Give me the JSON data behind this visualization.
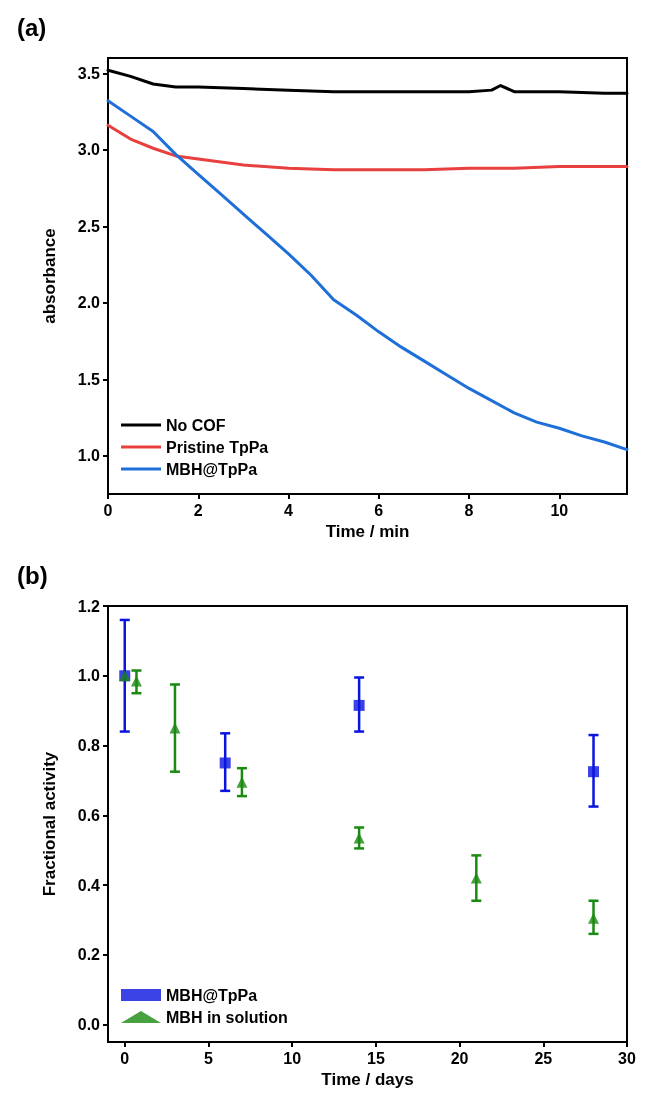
{
  "chart_data": [
    {
      "type": "line",
      "title": "(a)",
      "xlabel": "Time / min",
      "ylabel": "absorbance",
      "xlim": [
        0,
        11.5
      ],
      "xticks": [
        0,
        2,
        4,
        6,
        8,
        10
      ],
      "ylim": [
        0.75,
        3.6
      ],
      "yticks": [
        {
          "value": 1,
          "label": "1.0"
        },
        1.5,
        {
          "value": 2,
          "label": "2.0"
        },
        2.5,
        {
          "value": 3,
          "label": "3.0"
        },
        3.5
      ],
      "grid": false,
      "legend": "bottom left",
      "line_style": "solid",
      "series": [
        {
          "name": "No COF",
          "color": "#000000",
          "x": [
            0,
            0.5,
            1,
            1.5,
            2,
            3,
            4,
            5,
            6,
            7,
            8,
            8.5,
            8.7,
            9,
            10,
            11,
            11.5
          ],
          "values": [
            3.52,
            3.48,
            3.43,
            3.41,
            3.41,
            3.4,
            3.39,
            3.38,
            3.38,
            3.38,
            3.38,
            3.39,
            3.42,
            3.38,
            3.38,
            3.37,
            3.37
          ]
        },
        {
          "name": "Pristine TpPa",
          "color": "#e8403e",
          "x": [
            0,
            0.5,
            1,
            1.5,
            2,
            3,
            4,
            5,
            6,
            7,
            8,
            9,
            10,
            11,
            11.5
          ],
          "values": [
            3.16,
            3.07,
            3.01,
            2.96,
            2.94,
            2.9,
            2.88,
            2.87,
            2.87,
            2.87,
            2.88,
            2.88,
            2.89,
            2.89,
            2.89
          ]
        },
        {
          "name": "MBH@TpPa",
          "color": "#1f6fd9",
          "x": [
            0,
            0.5,
            1,
            1.5,
            2,
            2.5,
            3,
            3.5,
            4,
            4.5,
            5,
            5.5,
            6,
            6.5,
            7,
            7.5,
            8,
            8.5,
            9,
            9.5,
            10,
            10.5,
            11,
            11.5
          ],
          "values": [
            3.32,
            3.22,
            3.12,
            2.97,
            2.84,
            2.71,
            2.58,
            2.45,
            2.32,
            2.18,
            2.02,
            1.92,
            1.81,
            1.71,
            1.62,
            1.53,
            1.44,
            1.36,
            1.28,
            1.22,
            1.18,
            1.13,
            1.09,
            1.04
          ]
        }
      ]
    },
    {
      "type": "scatter",
      "title": "(b)",
      "xlabel": "Time / days",
      "ylabel": "Fractional activity",
      "xlim": [
        -1,
        30
      ],
      "xticks": [
        0,
        5,
        10,
        15,
        20,
        25,
        30
      ],
      "ylim": [
        -0.05,
        1.2
      ],
      "yticks": [
        {
          "value": 0,
          "label": "0.0"
        },
        0.2,
        0.4,
        0.6,
        0.8,
        {
          "value": 1,
          "label": "1.0"
        },
        1.2
      ],
      "grid": false,
      "legend": "bottom left",
      "series": [
        {
          "name": "MBH@TpPa",
          "color": "#0a14e0",
          "marker": "square",
          "x": [
            0,
            6,
            14,
            28
          ],
          "values": [
            1.0,
            0.75,
            0.915,
            0.725
          ],
          "errors": [
            [
              0.84,
              1.16
            ],
            [
              0.67,
              0.835
            ],
            [
              0.84,
              0.995
            ],
            [
              0.625,
              0.83
            ]
          ]
        },
        {
          "name": "MBH in solution",
          "color": "#1a8a10",
          "marker": "triangle",
          "x": [
            0,
            0.7,
            3,
            7,
            14,
            21,
            28
          ],
          "values": [
            1.0,
            0.985,
            0.85,
            0.695,
            0.535,
            0.42,
            0.305
          ],
          "errors": [
            null,
            [
              0.95,
              1.015
            ],
            [
              0.725,
              0.975
            ],
            [
              0.655,
              0.735
            ],
            [
              0.505,
              0.565
            ],
            [
              0.355,
              0.485
            ],
            [
              0.26,
              0.355
            ]
          ]
        }
      ]
    }
  ]
}
